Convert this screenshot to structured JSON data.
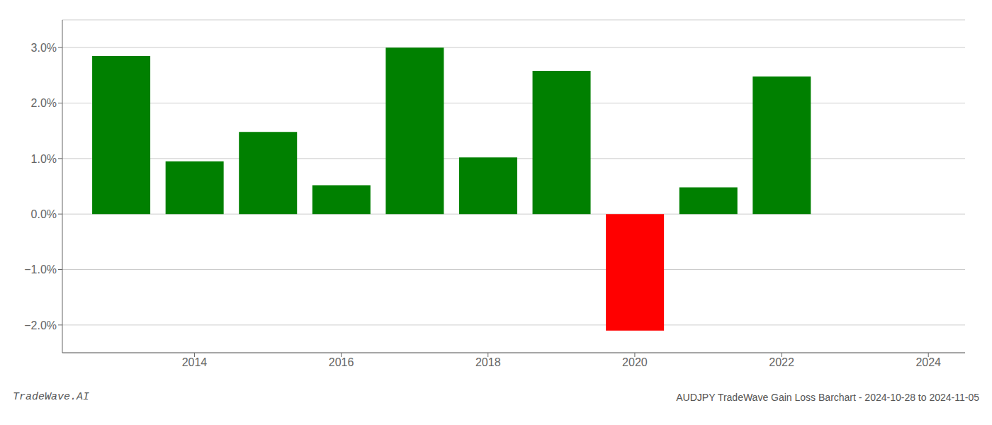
{
  "chart_data": {
    "type": "bar",
    "title": "AUDJPY TradeWave Gain Loss Barchart - 2024-10-28 to 2024-11-05",
    "annotations": [
      "TradeWave.AI"
    ],
    "x": [
      2013,
      2014,
      2015,
      2016,
      2017,
      2018,
      2019,
      2020,
      2021,
      2022
    ],
    "values": [
      0.0285,
      0.0095,
      0.0148,
      0.0052,
      0.03,
      0.0102,
      0.0258,
      -0.021,
      0.0048,
      0.0248
    ],
    "colors": [
      "#008000",
      "#008000",
      "#008000",
      "#008000",
      "#008000",
      "#008000",
      "#008000",
      "#ff0000",
      "#008000",
      "#008000"
    ],
    "xlim": [
      2012.2,
      2024.5
    ],
    "xticks": [
      2014,
      2016,
      2018,
      2020,
      2022,
      2024
    ],
    "ylim": [
      -0.025,
      0.035
    ],
    "yticks": [
      {
        "value": -0.02,
        "label": "−2.0%"
      },
      {
        "value": -0.01,
        "label": "−1.0%"
      },
      {
        "value": 0.0,
        "label": "0.0%"
      },
      {
        "value": 0.01,
        "label": "1.0%"
      },
      {
        "value": 0.02,
        "label": "2.0%"
      },
      {
        "value": 0.03,
        "label": "3.0%"
      }
    ],
    "grid": "y"
  }
}
